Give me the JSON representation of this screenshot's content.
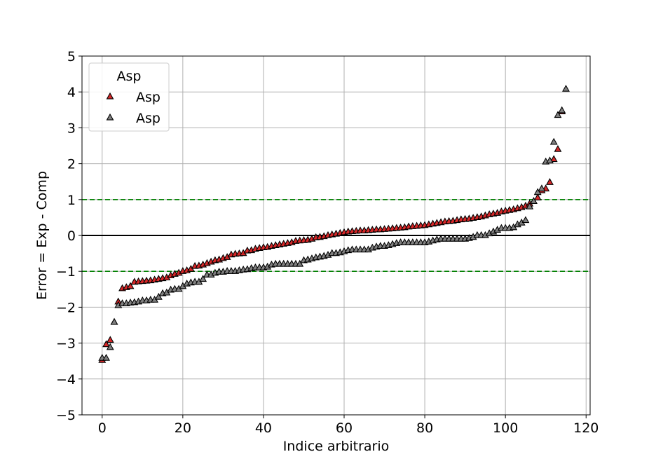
{
  "chart_data": {
    "type": "scatter",
    "title": "",
    "xlabel": "Indice arbitrario",
    "ylabel": "Error = Exp - Comp",
    "xlim": [
      -5,
      121
    ],
    "ylim": [
      -5,
      5
    ],
    "xticks": [
      0,
      20,
      40,
      60,
      80,
      100,
      120
    ],
    "yticks": [
      -5,
      -4,
      -3,
      -2,
      -1,
      0,
      1,
      2,
      3,
      4,
      5
    ],
    "grid": true,
    "legend": {
      "title": "Asp",
      "placement": "upper-left"
    },
    "reference_lines": [
      {
        "y": 0,
        "style": "solid",
        "color": "#000000"
      },
      {
        "y": 1,
        "style": "dashed",
        "color": "#008000"
      },
      {
        "y": -1,
        "style": "dashed",
        "color": "#008000"
      }
    ],
    "series": [
      {
        "name": "Asp",
        "color": "#d62728",
        "marker": "triangle-up",
        "values": [
          -3.48,
          -3.04,
          -2.92,
          -2.42,
          -1.85,
          -1.48,
          -1.45,
          -1.42,
          -1.3,
          -1.29,
          -1.28,
          -1.27,
          -1.26,
          -1.24,
          -1.22,
          -1.2,
          -1.18,
          -1.12,
          -1.08,
          -1.05,
          -1.0,
          -0.98,
          -0.94,
          -0.86,
          -0.85,
          -0.82,
          -0.78,
          -0.74,
          -0.7,
          -0.68,
          -0.64,
          -0.61,
          -0.54,
          -0.52,
          -0.51,
          -0.5,
          -0.43,
          -0.42,
          -0.38,
          -0.36,
          -0.34,
          -0.33,
          -0.3,
          -0.28,
          -0.26,
          -0.24,
          -0.22,
          -0.2,
          -0.16,
          -0.15,
          -0.14,
          -0.13,
          -0.1,
          -0.06,
          -0.05,
          -0.03,
          0.0,
          0.02,
          0.04,
          0.06,
          0.08,
          0.1,
          0.11,
          0.12,
          0.13,
          0.13,
          0.14,
          0.15,
          0.16,
          0.16,
          0.17,
          0.18,
          0.19,
          0.2,
          0.21,
          0.22,
          0.24,
          0.25,
          0.26,
          0.27,
          0.28,
          0.3,
          0.32,
          0.34,
          0.36,
          0.38,
          0.39,
          0.4,
          0.42,
          0.44,
          0.45,
          0.46,
          0.48,
          0.5,
          0.52,
          0.55,
          0.58,
          0.6,
          0.62,
          0.66,
          0.68,
          0.7,
          0.72,
          0.75,
          0.78,
          0.82,
          0.88,
          0.95,
          1.05,
          1.25,
          1.3,
          1.48,
          2.12,
          2.4,
          3.45
        ]
      },
      {
        "name": "Asp",
        "color": "#808080",
        "marker": "triangle-up",
        "values": [
          -3.42,
          -3.42,
          -3.12,
          -2.42,
          -1.95,
          -1.9,
          -1.9,
          -1.88,
          -1.87,
          -1.85,
          -1.82,
          -1.82,
          -1.8,
          -1.8,
          -1.72,
          -1.62,
          -1.6,
          -1.52,
          -1.5,
          -1.5,
          -1.42,
          -1.35,
          -1.32,
          -1.3,
          -1.3,
          -1.22,
          -1.1,
          -1.1,
          -1.05,
          -1.02,
          -1.02,
          -1.0,
          -1.0,
          -1.0,
          -0.98,
          -0.96,
          -0.95,
          -0.92,
          -0.9,
          -0.9,
          -0.9,
          -0.88,
          -0.82,
          -0.8,
          -0.8,
          -0.8,
          -0.8,
          -0.8,
          -0.8,
          -0.8,
          -0.7,
          -0.68,
          -0.65,
          -0.62,
          -0.6,
          -0.58,
          -0.55,
          -0.5,
          -0.5,
          -0.48,
          -0.45,
          -0.42,
          -0.4,
          -0.4,
          -0.4,
          -0.4,
          -0.4,
          -0.35,
          -0.32,
          -0.3,
          -0.3,
          -0.28,
          -0.25,
          -0.22,
          -0.2,
          -0.2,
          -0.2,
          -0.2,
          -0.2,
          -0.2,
          -0.2,
          -0.18,
          -0.15,
          -0.12,
          -0.1,
          -0.1,
          -0.1,
          -0.1,
          -0.1,
          -0.1,
          -0.1,
          -0.08,
          -0.05,
          0.0,
          0.0,
          0.0,
          0.05,
          0.1,
          0.15,
          0.2,
          0.2,
          0.2,
          0.22,
          0.3,
          0.35,
          0.42,
          0.8,
          0.95,
          1.2,
          1.3,
          2.05,
          2.08,
          2.6,
          3.35,
          3.48,
          4.08
        ]
      }
    ]
  }
}
